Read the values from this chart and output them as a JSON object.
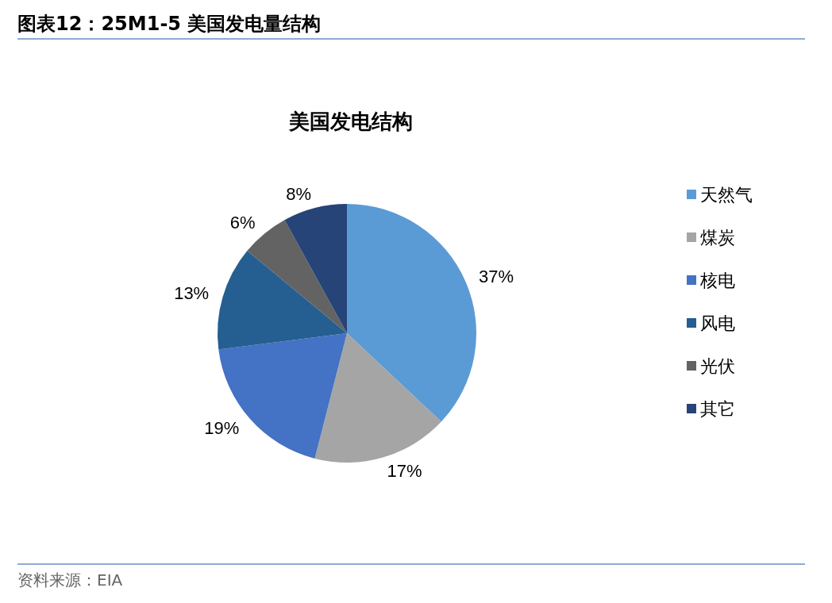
{
  "chart_data": {
    "type": "pie",
    "title": "图表12：25M1-5 美国发电量结构",
    "subtitle": "美国发电结构",
    "categories": [
      "天然气",
      "煤炭",
      "核电",
      "风电",
      "光伏",
      "其它"
    ],
    "values": [
      37,
      17,
      19,
      13,
      6,
      8
    ],
    "colors": [
      "#5b9bd5",
      "#a5a5a5",
      "#4472c4",
      "#255e91",
      "#636363",
      "#264478"
    ],
    "value_labels": [
      "37%",
      "17%",
      "19%",
      "13%",
      "6%",
      "8%"
    ],
    "legend": "right",
    "annotations": [
      "资料来源：EIA"
    ]
  }
}
